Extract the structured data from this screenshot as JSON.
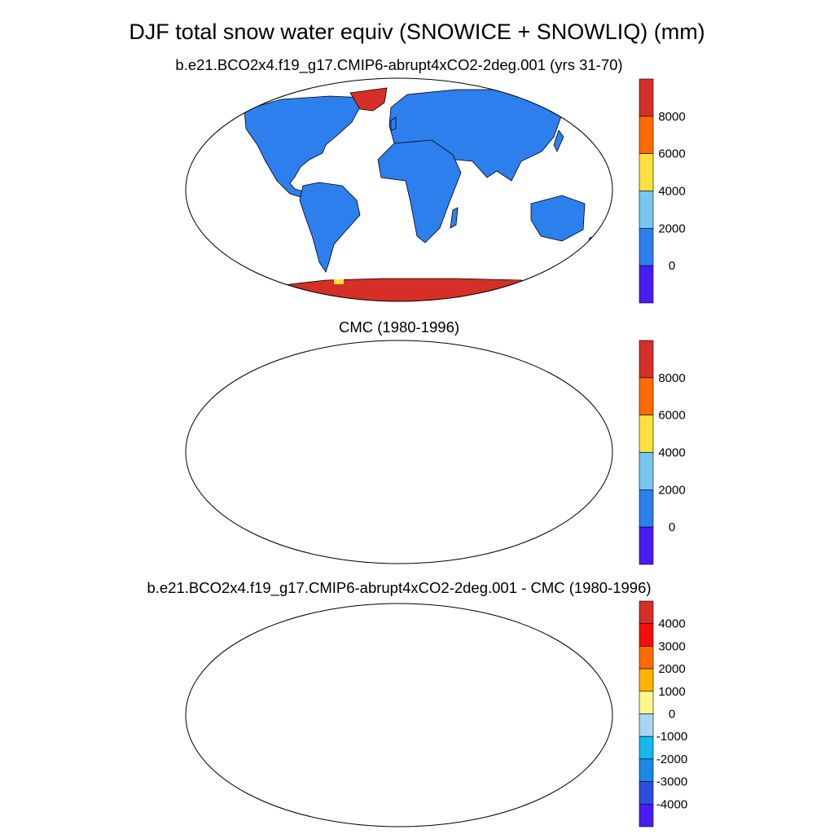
{
  "figure": {
    "title": "DJF total snow water equiv (SNOWICE + SNOWLIQ) (mm)"
  },
  "panels": [
    {
      "id": "model",
      "subtitle": "b.e21.BCO2x4.f19_g17.CMIP6-abrupt4xCO2-2deg.001 (yrs 31-70)",
      "colorbar": {
        "levels": [
          "8000",
          "6000",
          "4000",
          "2000",
          "0"
        ],
        "colors": [
          "#d62f27",
          "#ff6a00",
          "#fde040",
          "#76c6f0",
          "#2d7fed",
          "#4a1bf2"
        ]
      }
    },
    {
      "id": "obs",
      "subtitle": "CMC (1980-1996)",
      "colorbar": {
        "levels": [
          "8000",
          "6000",
          "4000",
          "2000",
          "0"
        ],
        "colors": [
          "#d62f27",
          "#ff6a00",
          "#fde040",
          "#76c6f0",
          "#2d7fed",
          "#4a1bf2"
        ]
      }
    },
    {
      "id": "diff",
      "subtitle": "b.e21.BCO2x4.f19_g17.CMIP6-abrupt4xCO2-2deg.001 - CMC (1980-1996)",
      "colorbar": {
        "levels": [
          "4000",
          "3000",
          "2000",
          "1000",
          "0",
          "-1000",
          "-2000",
          "-3000",
          "-4000"
        ],
        "colors": [
          "#d62f27",
          "#f50e0e",
          "#ff6a00",
          "#ffb300",
          "#fff78a",
          "#a8d6f0",
          "#16b8f0",
          "#1a88e6",
          "#2f4ee0",
          "#4a1bf2"
        ]
      }
    }
  ],
  "legend_colors": {
    "snow_model": "#2d7fed",
    "ice_sheet": "#d62f27",
    "diff_positive_small": "#fff78a",
    "diff_negative_small": "#a8d6f0",
    "coastline": "#000000"
  }
}
